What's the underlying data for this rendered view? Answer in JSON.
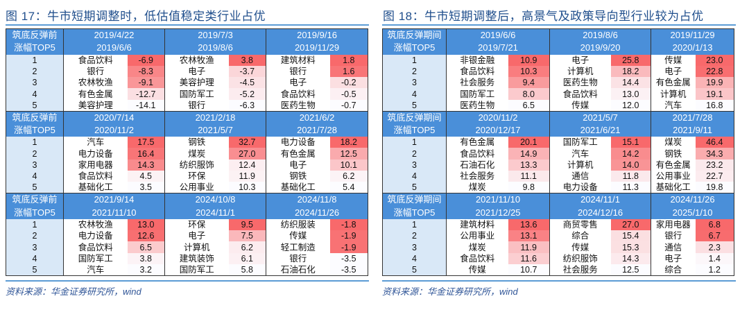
{
  "figures": [
    {
      "title": "图 17：牛市短期调整时，低估值稳定类行业占优",
      "row_label_line1": "筑底反弹前",
      "row_label_line2": "涨幅TOP5",
      "source": "资料来源：华金证券研究所，wind",
      "blocks": [
        {
          "periods": [
            {
              "start": "2019/4/22",
              "end": "2019/6/6"
            },
            {
              "start": "2019/7/3",
              "end": "2019/8/6"
            },
            {
              "start": "2019/9/16",
              "end": "2019/11/29"
            }
          ],
          "rows": [
            {
              "rank": "1",
              "cells": [
                {
                  "name": "食品饮料",
                  "value": "-6.9"
                },
                {
                  "name": "农林牧渔",
                  "value": "3.8"
                },
                {
                  "name": "建筑材料",
                  "value": "1.8"
                }
              ]
            },
            {
              "rank": "2",
              "cells": [
                {
                  "name": "银行",
                  "value": "-8.3"
                },
                {
                  "name": "电子",
                  "value": "-3.7"
                },
                {
                  "name": "银行",
                  "value": "1.6"
                }
              ]
            },
            {
              "rank": "3",
              "cells": [
                {
                  "name": "农林牧渔",
                  "value": "-9.1"
                },
                {
                  "name": "美容护理",
                  "value": "-4.5"
                },
                {
                  "name": "电子",
                  "value": "-0.2"
                }
              ]
            },
            {
              "rank": "4",
              "cells": [
                {
                  "name": "有色金属",
                  "value": "-12.7"
                },
                {
                  "name": "国防军工",
                  "value": "-5.2"
                },
                {
                  "name": "食品饮料",
                  "value": "-0.5"
                }
              ]
            },
            {
              "rank": "5",
              "cells": [
                {
                  "name": "美容护理",
                  "value": "-14.1"
                },
                {
                  "name": "银行",
                  "value": "-6.3"
                },
                {
                  "name": "医药生物",
                  "value": "-0.7"
                }
              ]
            }
          ]
        },
        {
          "periods": [
            {
              "start": "2020/7/14",
              "end": "2020/11/2"
            },
            {
              "start": "2021/2/18",
              "end": "2021/5/7"
            },
            {
              "start": "2021/6/2",
              "end": "2021/7/28"
            }
          ],
          "rows": [
            {
              "rank": "1",
              "cells": [
                {
                  "name": "汽车",
                  "value": "17.5"
                },
                {
                  "name": "钢铁",
                  "value": "32.7"
                },
                {
                  "name": "电力设备",
                  "value": "18.2"
                }
              ]
            },
            {
              "rank": "2",
              "cells": [
                {
                  "name": "电力设备",
                  "value": "16.4"
                },
                {
                  "name": "煤炭",
                  "value": "27.0"
                },
                {
                  "name": "有色金属",
                  "value": "12.5"
                }
              ]
            },
            {
              "rank": "3",
              "cells": [
                {
                  "name": "家用电器",
                  "value": "14.3"
                },
                {
                  "name": "纺织服饰",
                  "value": "12.4"
                },
                {
                  "name": "电子",
                  "value": "10.1"
                }
              ]
            },
            {
              "rank": "4",
              "cells": [
                {
                  "name": "食品饮料",
                  "value": "4.5"
                },
                {
                  "name": "环保",
                  "value": "11.9"
                },
                {
                  "name": "钢铁",
                  "value": "6.2"
                }
              ]
            },
            {
              "rank": "5",
              "cells": [
                {
                  "name": "基础化工",
                  "value": "3.5"
                },
                {
                  "name": "公用事业",
                  "value": "10.3"
                },
                {
                  "name": "基础化工",
                  "value": "5.4"
                }
              ]
            }
          ]
        },
        {
          "periods": [
            {
              "start": "2021/9/14",
              "end": "2021/11/10"
            },
            {
              "start": "2024/10/8",
              "end": "2024/11/1"
            },
            {
              "start": "2024/11/8",
              "end": "2024/11/26"
            }
          ],
          "rows": [
            {
              "rank": "1",
              "cells": [
                {
                  "name": "农林牧渔",
                  "value": "13.0"
                },
                {
                  "name": "环保",
                  "value": "9.5"
                },
                {
                  "name": "纺织服装",
                  "value": "-1.8"
                }
              ]
            },
            {
              "rank": "2",
              "cells": [
                {
                  "name": "电力设备",
                  "value": "12.6"
                },
                {
                  "name": "电子",
                  "value": "7.5"
                },
                {
                  "name": "传媒",
                  "value": "-1.9"
                }
              ]
            },
            {
              "rank": "3",
              "cells": [
                {
                  "name": "食品饮料",
                  "value": "6.5"
                },
                {
                  "name": "计算机",
                  "value": "6.2"
                },
                {
                  "name": "轻工制造",
                  "value": "-1.9"
                }
              ]
            },
            {
              "rank": "4",
              "cells": [
                {
                  "name": "国防军工",
                  "value": "3.8"
                },
                {
                  "name": "建筑装饰",
                  "value": "6.1"
                },
                {
                  "name": "银行",
                  "value": "-3.5"
                }
              ]
            },
            {
              "rank": "5",
              "cells": [
                {
                  "name": "汽车",
                  "value": "3.2"
                },
                {
                  "name": "国防军工",
                  "value": "5.8"
                },
                {
                  "name": "石油石化",
                  "value": "-3.5"
                }
              ]
            }
          ]
        }
      ]
    },
    {
      "title": "图 18：牛市短期调整后，高景气及政策导向型行业较为占优",
      "row_label_line1": "筑底反弹期间",
      "row_label_line2": "涨幅TOP5",
      "source": "资料来源：华金证券研究所，wind",
      "blocks": [
        {
          "periods": [
            {
              "start": "2019/6/6",
              "end": "2019/7/21"
            },
            {
              "start": "2019/8/6",
              "end": "2019/9/20"
            },
            {
              "start": "2019/11/29",
              "end": "2020/1/13"
            }
          ],
          "rows": [
            {
              "rank": "1",
              "cells": [
                {
                  "name": "非银金融",
                  "value": "10.9"
                },
                {
                  "name": "电子",
                  "value": "25.8"
                },
                {
                  "name": "传媒",
                  "value": "23.0"
                }
              ]
            },
            {
              "rank": "2",
              "cells": [
                {
                  "name": "食品饮料",
                  "value": "10.3"
                },
                {
                  "name": "计算机",
                  "value": "18.2"
                },
                {
                  "name": "电子",
                  "value": "22.8"
                }
              ]
            },
            {
              "rank": "3",
              "cells": [
                {
                  "name": "社会服务",
                  "value": "9.4"
                },
                {
                  "name": "医药生物",
                  "value": "14.4"
                },
                {
                  "name": "有色金属",
                  "value": "19.9"
                }
              ]
            },
            {
              "rank": "4",
              "cells": [
                {
                  "name": "国防军工",
                  "value": "8.0"
                },
                {
                  "name": "食品饮料",
                  "value": "13.0"
                },
                {
                  "name": "计算机",
                  "value": "19.1"
                }
              ]
            },
            {
              "rank": "5",
              "cells": [
                {
                  "name": "医药生物",
                  "value": "6.5"
                },
                {
                  "name": "传媒",
                  "value": "12.0"
                },
                {
                  "name": "汽车",
                  "value": "16.8"
                }
              ]
            }
          ]
        },
        {
          "periods": [
            {
              "start": "2020/11/2",
              "end": "2020/12/17"
            },
            {
              "start": "2021/5/7",
              "end": "2021/6/21"
            },
            {
              "start": "2021/7/28",
              "end": "2021/9/11"
            }
          ],
          "rows": [
            {
              "rank": "1",
              "cells": [
                {
                  "name": "有色金属",
                  "value": "20.1"
                },
                {
                  "name": "国防军工",
                  "value": "15.1"
                },
                {
                  "name": "煤炭",
                  "value": "46.4"
                }
              ]
            },
            {
              "rank": "2",
              "cells": [
                {
                  "name": "食品饮料",
                  "value": "14.9"
                },
                {
                  "name": "汽车",
                  "value": "14.2"
                },
                {
                  "name": "钢铁",
                  "value": "34.3"
                }
              ]
            },
            {
              "rank": "3",
              "cells": [
                {
                  "name": "石油石化",
                  "value": "13.3"
                },
                {
                  "name": "计算机",
                  "value": "14.0"
                },
                {
                  "name": "有色金属",
                  "value": "23.2"
                }
              ]
            },
            {
              "rank": "4",
              "cells": [
                {
                  "name": "社会服务",
                  "value": "11.1"
                },
                {
                  "name": "通信",
                  "value": "11.8"
                },
                {
                  "name": "公用事业",
                  "value": "22.7"
                }
              ]
            },
            {
              "rank": "5",
              "cells": [
                {
                  "name": "煤炭",
                  "value": "9.8"
                },
                {
                  "name": "电力设备",
                  "value": "11.3"
                },
                {
                  "name": "基础化工",
                  "value": "19.8"
                }
              ]
            }
          ]
        },
        {
          "periods": [
            {
              "start": "2021/11/10",
              "end": "2021/12/25"
            },
            {
              "start": "2024/11/1",
              "end": "2024/12/16"
            },
            {
              "start": "2024/11/26",
              "end": "2025/1/10"
            }
          ],
          "rows": [
            {
              "rank": "1",
              "cells": [
                {
                  "name": "建筑材料",
                  "value": "13.6"
                },
                {
                  "name": "商贸零售",
                  "value": "27.0"
                },
                {
                  "name": "家用电器",
                  "value": "6.8"
                }
              ]
            },
            {
              "rank": "2",
              "cells": [
                {
                  "name": "公用事业",
                  "value": "13.1"
                },
                {
                  "name": "综合",
                  "value": "15.4"
                },
                {
                  "name": "银行",
                  "value": "6.7"
                }
              ]
            },
            {
              "rank": "3",
              "cells": [
                {
                  "name": "煤炭",
                  "value": "11.9"
                },
                {
                  "name": "传媒",
                  "value": "15.3"
                },
                {
                  "name": "通信",
                  "value": "2.3"
                }
              ]
            },
            {
              "rank": "4",
              "cells": [
                {
                  "name": "食品饮料",
                  "value": "11.6"
                },
                {
                  "name": "纺织服饰",
                  "value": "14.3"
                },
                {
                  "name": "电子",
                  "value": "1.4"
                }
              ]
            },
            {
              "rank": "5",
              "cells": [
                {
                  "name": "传媒",
                  "value": "10.7"
                },
                {
                  "name": "社会服务",
                  "value": "12.5"
                },
                {
                  "name": "综合",
                  "value": "1.2"
                }
              ]
            }
          ]
        }
      ]
    }
  ],
  "colors": {
    "header_bg": "#4a8fd9",
    "rank_bg": "#d9e8f7",
    "heat_max": "#f8696b",
    "heat_min": "#fcfcff",
    "title": "#1f4e8c",
    "rule": "#5b9bd5",
    "source": "#2f5597"
  }
}
